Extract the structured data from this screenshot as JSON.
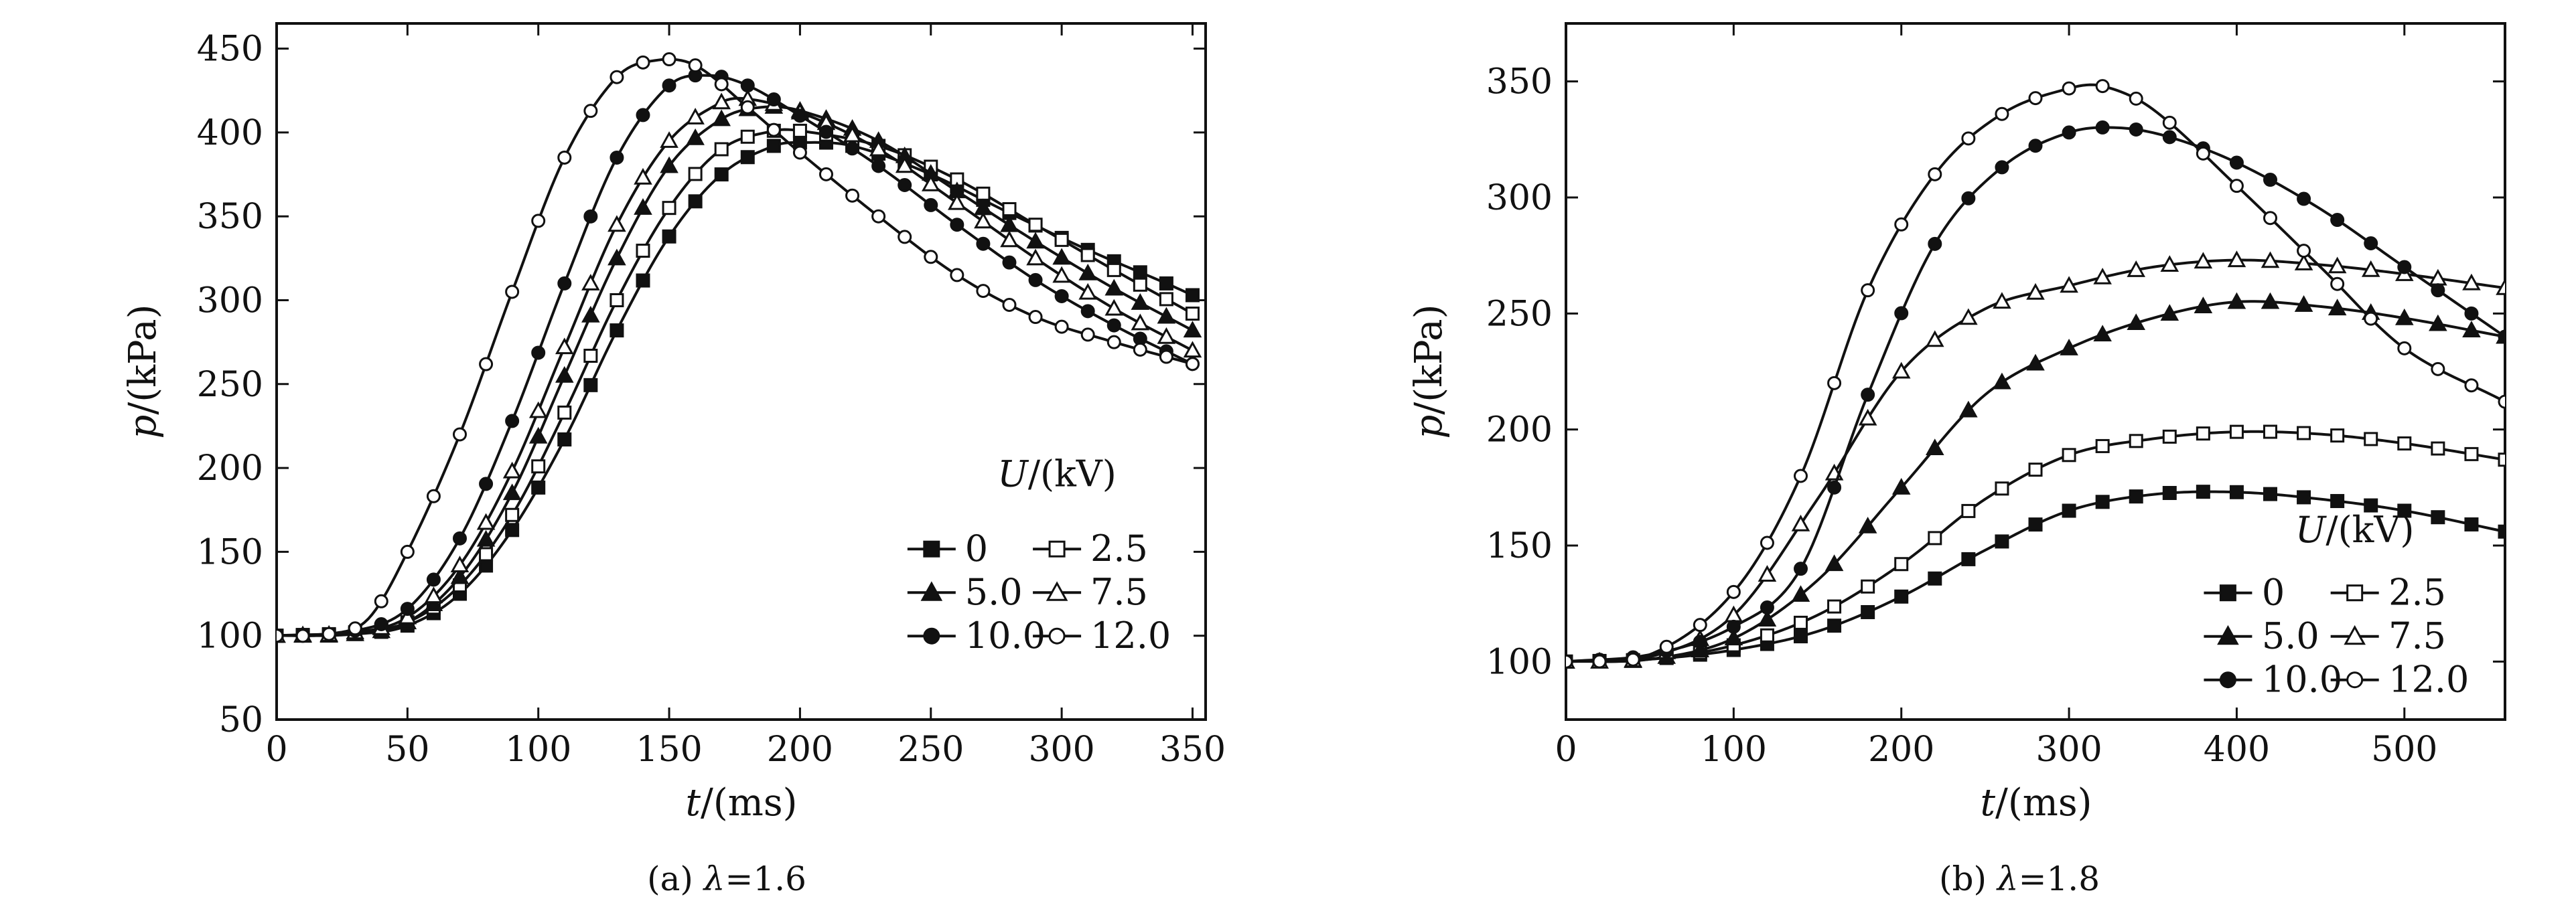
{
  "chart_data": [
    {
      "id": "a",
      "type": "line",
      "caption_prefix": "(a) ",
      "caption_symbol": "λ",
      "caption_suffix": "=1.6",
      "xlabel_italic": "t",
      "xlabel_rest": "/(ms)",
      "ylabel_italic": "p",
      "ylabel_rest": "/(kPa)",
      "xlim": [
        0,
        355
      ],
      "ylim": [
        50,
        465
      ],
      "xticks": [
        0,
        50,
        100,
        150,
        200,
        250,
        300,
        350
      ],
      "yticks": [
        50,
        100,
        150,
        200,
        250,
        300,
        350,
        400,
        450
      ],
      "marker_step": 10,
      "legend": {
        "title_italic": "U",
        "title_rest": "/(kV)",
        "placement": "bottom-right",
        "order": [
          0,
          1,
          2,
          3,
          4,
          5
        ]
      },
      "series": [
        {
          "name": "0",
          "marker": "square",
          "fill": "filled",
          "points": [
            [
              0,
              100
            ],
            [
              30,
              101
            ],
            [
              50,
              106
            ],
            [
              70,
              125
            ],
            [
              90,
              163
            ],
            [
              110,
              217
            ],
            [
              130,
              282
            ],
            [
              150,
              338
            ],
            [
              170,
              375
            ],
            [
              190,
              392
            ],
            [
              200,
              394
            ],
            [
              220,
              392
            ],
            [
              250,
              375
            ],
            [
              280,
              352
            ],
            [
              310,
              330
            ],
            [
              340,
              310
            ],
            [
              350,
              303
            ]
          ]
        },
        {
          "name": "2.5",
          "marker": "square",
          "fill": "open",
          "points": [
            [
              0,
              100
            ],
            [
              30,
              102
            ],
            [
              50,
              108
            ],
            [
              70,
              130
            ],
            [
              90,
              172
            ],
            [
              110,
              233
            ],
            [
              130,
              300
            ],
            [
              150,
              355
            ],
            [
              170,
              390
            ],
            [
              190,
              401
            ],
            [
              200,
              401
            ],
            [
              230,
              392
            ],
            [
              260,
              372
            ],
            [
              290,
              345
            ],
            [
              320,
              318
            ],
            [
              350,
              292
            ]
          ]
        },
        {
          "name": "5.0",
          "marker": "triangle",
          "fill": "filled",
          "points": [
            [
              0,
              100
            ],
            [
              30,
              101
            ],
            [
              50,
              108
            ],
            [
              70,
              135
            ],
            [
              90,
              185
            ],
            [
              110,
              255
            ],
            [
              130,
              325
            ],
            [
              150,
              380
            ],
            [
              170,
              408
            ],
            [
              185,
              415
            ],
            [
              200,
              413
            ],
            [
              230,
              395
            ],
            [
              260,
              365
            ],
            [
              290,
              335
            ],
            [
              320,
              307
            ],
            [
              350,
              282
            ]
          ]
        },
        {
          "name": "7.5",
          "marker": "triangle",
          "fill": "open",
          "points": [
            [
              0,
              100
            ],
            [
              30,
              102
            ],
            [
              50,
              111
            ],
            [
              70,
              142
            ],
            [
              90,
              198
            ],
            [
              110,
              272
            ],
            [
              130,
              345
            ],
            [
              150,
              395
            ],
            [
              170,
              418
            ],
            [
              180,
              420
            ],
            [
              200,
              412
            ],
            [
              230,
              390
            ],
            [
              260,
              358
            ],
            [
              290,
              325
            ],
            [
              320,
              295
            ],
            [
              350,
              270
            ]
          ]
        },
        {
          "name": "10.0",
          "marker": "circle",
          "fill": "filled",
          "points": [
            [
              0,
              100
            ],
            [
              30,
              103
            ],
            [
              50,
              116
            ],
            [
              70,
              158
            ],
            [
              90,
              228
            ],
            [
              110,
              310
            ],
            [
              130,
              385
            ],
            [
              150,
              428
            ],
            [
              165,
              434
            ],
            [
              180,
              428
            ],
            [
              200,
              410
            ],
            [
              230,
              380
            ],
            [
              260,
              345
            ],
            [
              290,
              312
            ],
            [
              320,
              285
            ],
            [
              350,
              262
            ]
          ]
        },
        {
          "name": "12.0",
          "marker": "circle",
          "fill": "open",
          "points": [
            [
              0,
              100
            ],
            [
              20,
              101
            ],
            [
              35,
              110
            ],
            [
              50,
              150
            ],
            [
              70,
              220
            ],
            [
              90,
              305
            ],
            [
              110,
              385
            ],
            [
              130,
              433
            ],
            [
              145,
              443
            ],
            [
              160,
              440
            ],
            [
              180,
              415
            ],
            [
              200,
              388
            ],
            [
              230,
              350
            ],
            [
              260,
              315
            ],
            [
              290,
              290
            ],
            [
              320,
              275
            ],
            [
              350,
              262
            ]
          ]
        }
      ]
    },
    {
      "id": "b",
      "type": "line",
      "caption_prefix": "(b) ",
      "caption_symbol": "λ",
      "caption_suffix": "=1.8",
      "xlabel_italic": "t",
      "xlabel_rest": "/(ms)",
      "ylabel_italic": "p",
      "ylabel_rest": "/(kPa)",
      "xlim": [
        0,
        560
      ],
      "ylim": [
        75,
        375
      ],
      "xticks": [
        0,
        100,
        200,
        300,
        400,
        500
      ],
      "yticks": [
        100,
        150,
        200,
        250,
        300,
        350
      ],
      "marker_step": 20,
      "legend": {
        "title_italic": "U",
        "title_rest": "/(kV)",
        "placement": "bottom-right",
        "order": [
          0,
          1,
          2,
          3,
          4,
          5
        ]
      },
      "series": [
        {
          "name": "0",
          "marker": "square",
          "fill": "filled",
          "points": [
            [
              0,
              100
            ],
            [
              50,
              101
            ],
            [
              100,
              105
            ],
            [
              150,
              113
            ],
            [
              200,
              128
            ],
            [
              250,
              148
            ],
            [
              300,
              165
            ],
            [
              350,
              172
            ],
            [
              400,
              173
            ],
            [
              450,
              170
            ],
            [
              500,
              165
            ],
            [
              560,
              156
            ]
          ]
        },
        {
          "name": "2.5",
          "marker": "square",
          "fill": "open",
          "points": [
            [
              0,
              100
            ],
            [
              50,
              101
            ],
            [
              100,
              107
            ],
            [
              150,
              120
            ],
            [
              200,
              142
            ],
            [
              250,
              170
            ],
            [
              300,
              189
            ],
            [
              350,
              196
            ],
            [
              400,
              199
            ],
            [
              450,
              198
            ],
            [
              500,
              194
            ],
            [
              560,
              187
            ]
          ]
        },
        {
          "name": "5.0",
          "marker": "triangle",
          "fill": "filled",
          "points": [
            [
              0,
              100
            ],
            [
              50,
              101
            ],
            [
              100,
              110
            ],
            [
              150,
              135
            ],
            [
              200,
              175
            ],
            [
              250,
              215
            ],
            [
              300,
              235
            ],
            [
              350,
              248
            ],
            [
              400,
              255
            ],
            [
              450,
              253
            ],
            [
              500,
              248
            ],
            [
              560,
              240
            ]
          ]
        },
        {
          "name": "7.5",
          "marker": "triangle",
          "fill": "open",
          "points": [
            [
              0,
              100
            ],
            [
              50,
              102
            ],
            [
              100,
              120
            ],
            [
              150,
              170
            ],
            [
              200,
              225
            ],
            [
              250,
              252
            ],
            [
              300,
              262
            ],
            [
              350,
              270
            ],
            [
              400,
              273
            ],
            [
              450,
              271
            ],
            [
              500,
              267
            ],
            [
              560,
              261
            ]
          ]
        },
        {
          "name": "10.0",
          "marker": "circle",
          "fill": "filled",
          "points": [
            [
              0,
              100
            ],
            [
              50,
              103
            ],
            [
              100,
              115
            ],
            [
              140,
              140
            ],
            [
              180,
              215
            ],
            [
              220,
              280
            ],
            [
              260,
              313
            ],
            [
              300,
              328
            ],
            [
              330,
              330
            ],
            [
              360,
              326
            ],
            [
              400,
              315
            ],
            [
              450,
              295
            ],
            [
              500,
              270
            ],
            [
              560,
              240
            ]
          ]
        },
        {
          "name": "12.0",
          "marker": "circle",
          "fill": "open",
          "points": [
            [
              0,
              100
            ],
            [
              50,
              103
            ],
            [
              100,
              130
            ],
            [
              140,
              180
            ],
            [
              180,
              260
            ],
            [
              220,
              310
            ],
            [
              260,
              336
            ],
            [
              300,
              347
            ],
            [
              320,
              348
            ],
            [
              350,
              338
            ],
            [
              400,
              305
            ],
            [
              450,
              270
            ],
            [
              500,
              235
            ],
            [
              560,
              212
            ]
          ]
        }
      ]
    }
  ]
}
